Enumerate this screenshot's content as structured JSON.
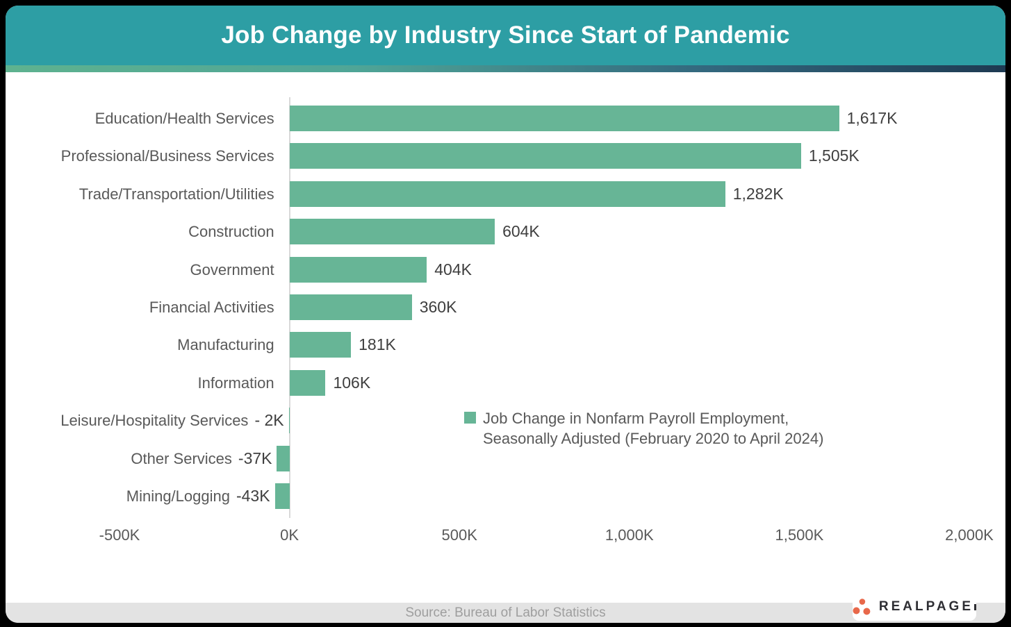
{
  "title": "Job Change by Industry Since Start of Pandemic",
  "legend": {
    "line1": "Job Change in Nonfarm Payroll Employment,",
    "line2": "Seasonally Adjusted (February 2020 to April 2024)"
  },
  "source": "Source: Bureau of Labor Statistics",
  "logo": {
    "text": "REALPAGE",
    "dot_color": "#E8684A",
    "text_color": "#2E2E33"
  },
  "colors": {
    "bar": "#67B596",
    "header": "#2D9EA4",
    "stripe_start": "#5EB28F",
    "stripe_end": "#1E3A52",
    "axis_line": "#D9D9D9",
    "category_text": "#595959",
    "value_text": "#3F3F3F",
    "footer_bg": "#E3E3E3",
    "footer_text": "#9E9E9E",
    "page_bg": "#000000"
  },
  "chart_data": {
    "type": "bar",
    "orientation": "horizontal",
    "title": "Job Change by Industry Since Start of Pandemic",
    "categories": [
      "Education/Health Services",
      "Professional/Business Services",
      "Trade/Transportation/Utilities",
      "Construction",
      "Government",
      "Financial Activities",
      "Manufacturing",
      "Information",
      "Leisure/Hospitality Services",
      "Other Services",
      "Mining/Logging"
    ],
    "values": [
      1617,
      1505,
      1282,
      604,
      404,
      360,
      181,
      106,
      -2,
      -37,
      -43
    ],
    "value_labels": [
      "1,617K",
      "1,505K",
      "1,282K",
      "604K",
      "404K",
      "360K",
      "181K",
      "106K",
      "- 2K",
      "-37K",
      "-43K"
    ],
    "unit": "K (thousands of jobs)",
    "series_name": "Job Change in Nonfarm Payroll Employment, Seasonally Adjusted (February 2020 to April 2024)",
    "xlim": [
      -500,
      2000
    ],
    "x_ticks": {
      "values": [
        -500,
        0,
        500,
        1000,
        1500,
        2000
      ],
      "labels": [
        "-500K",
        "0K",
        "500K",
        "1,000K",
        "1,500K",
        "2,000K"
      ]
    },
    "grid": false,
    "legend_position": "center-right",
    "source": "Bureau of Labor Statistics"
  }
}
